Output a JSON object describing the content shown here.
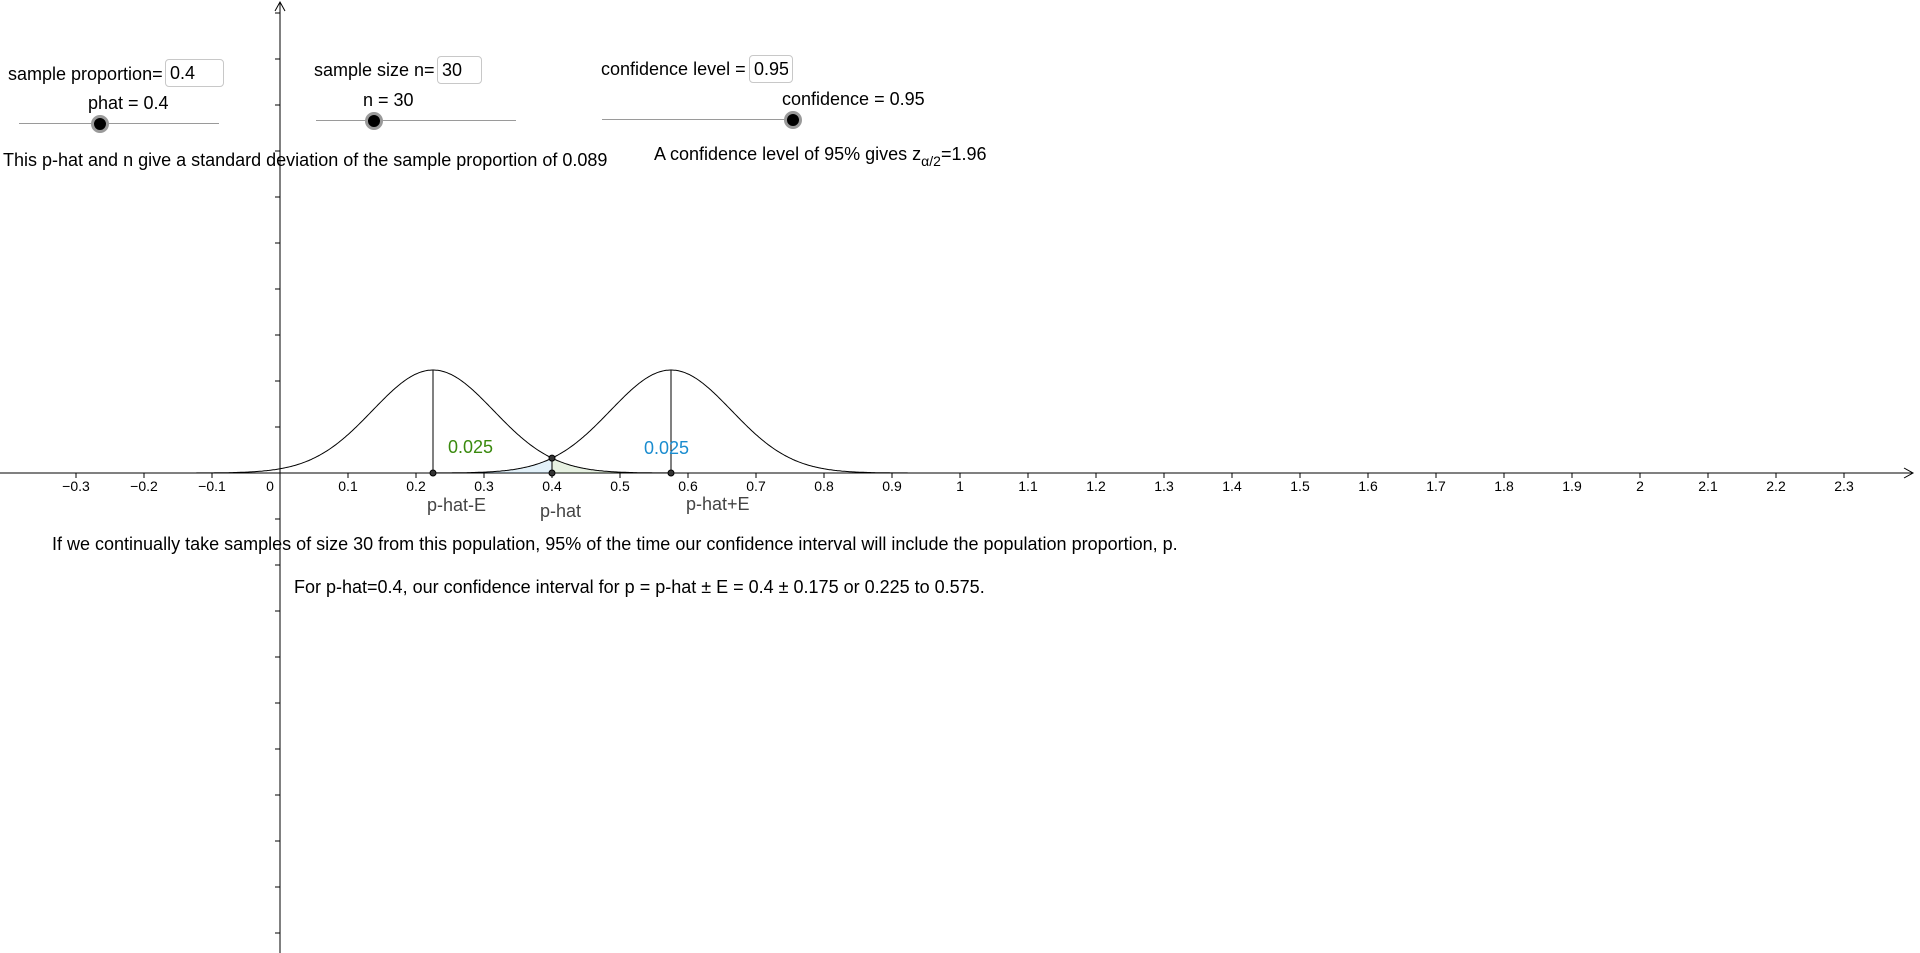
{
  "inputs": {
    "sample_proportion": {
      "label": "sample proportion=",
      "value": "0.4"
    },
    "sample_size": {
      "label": "sample size n=",
      "value": "30"
    },
    "confidence_level": {
      "label": "confidence level =",
      "value": "0.95"
    }
  },
  "sliders": {
    "phat": {
      "caption": "phat = 0.4",
      "position_fraction": 0.4
    },
    "n": {
      "caption": "n = 30",
      "position_fraction": 0.29
    },
    "confidence": {
      "caption": "confidence = 0.95",
      "position_fraction": 0.95
    }
  },
  "text": {
    "std_dev_sentence": "This p-hat and n give a standard deviation of the sample proportion of 0.089",
    "z_sentence_prefix": "A confidence level of 95% gives z",
    "z_subscript": "α/2",
    "z_sentence_suffix": "=1.96",
    "interpretation": "If we continually take samples of size 30 from this population, 95% of the time our confidence interval will include the population proportion, p.",
    "interval_sentence": "For p-hat=0.4, our confidence interval for p = p-hat ± E = 0.4 ± 0.175 or 0.225 to 0.575."
  },
  "graph": {
    "x_ticks": [
      "−0.3",
      "−0.2",
      "−0.1",
      "0",
      "0.1",
      "0.2",
      "0.3",
      "0.4",
      "0.5",
      "0.6",
      "0.7",
      "0.8",
      "0.9",
      "1",
      "1.1",
      "1.2",
      "1.3",
      "1.4",
      "1.5",
      "1.6",
      "1.7",
      "1.8",
      "1.9",
      "2",
      "2.1",
      "2.2",
      "2.3"
    ],
    "point_labels": {
      "lower": "p-hat-E",
      "center": "p-hat",
      "upper": "p-hat+E"
    },
    "tail_labels": {
      "left": "0.025",
      "right": "0.025"
    },
    "tail_colors": {
      "left": "#3a8a0e",
      "right": "#1a8ccf"
    },
    "values": {
      "phat": 0.4,
      "E": 0.175,
      "sd": 0.089,
      "lower": 0.225,
      "upper": 0.575
    }
  }
}
